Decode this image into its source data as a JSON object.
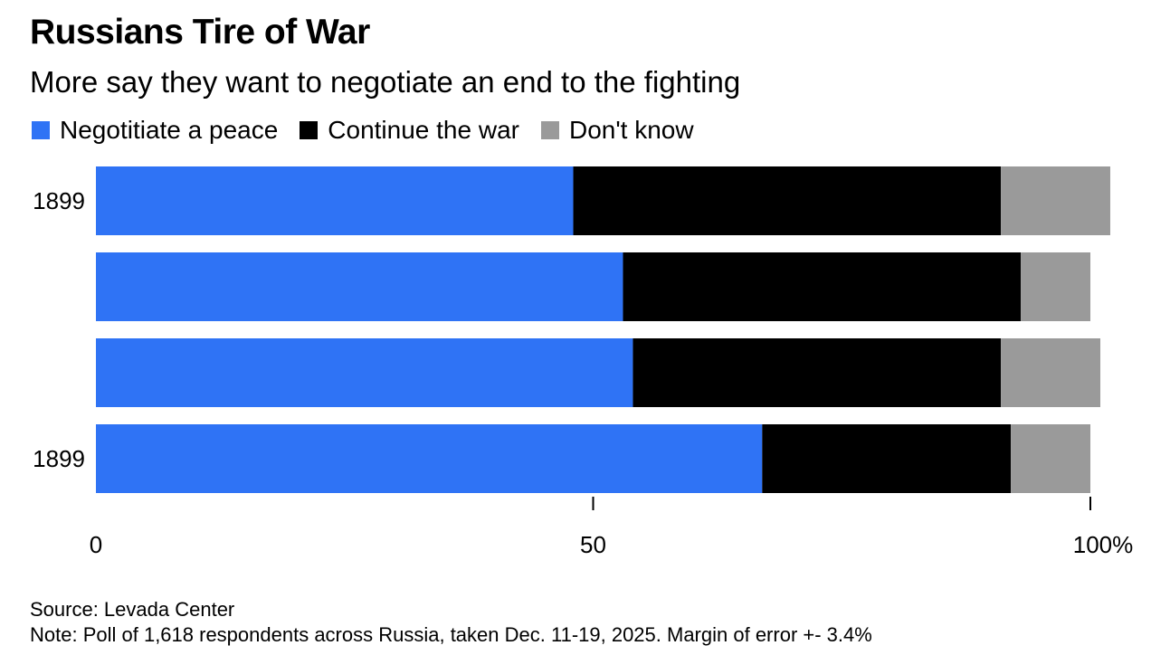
{
  "chart_data": {
    "type": "bar",
    "orientation": "horizontal",
    "stacked": true,
    "title": "Russians Tire of War",
    "subtitle": "More say they want to negotiate an end to the fighting",
    "categories": [
      "1899",
      "",
      "",
      "1899"
    ],
    "series": [
      {
        "name": "Negotitiate a peace",
        "color": "#2f73f5",
        "values": [
          48,
          53,
          54,
          67
        ]
      },
      {
        "name": "Continue the war",
        "color": "#000000",
        "values": [
          43,
          40,
          37,
          25
        ]
      },
      {
        "name": "Don't know",
        "color": "#9a9a9a",
        "values": [
          11,
          7,
          10,
          8
        ]
      }
    ],
    "xlabel": "",
    "ylabel": "",
    "xlim": [
      0,
      100
    ],
    "x_ticks": [
      0,
      50,
      100
    ],
    "x_tick_labels": [
      "0",
      "50",
      "100%"
    ],
    "grid": false,
    "legend_position": "top-left"
  },
  "footer": {
    "source": "Source: Levada Center",
    "note": "Note: Poll of 1,618 respondents across Russia, taken Dec. 11-19, 2025. Margin of error +- 3.4%"
  }
}
